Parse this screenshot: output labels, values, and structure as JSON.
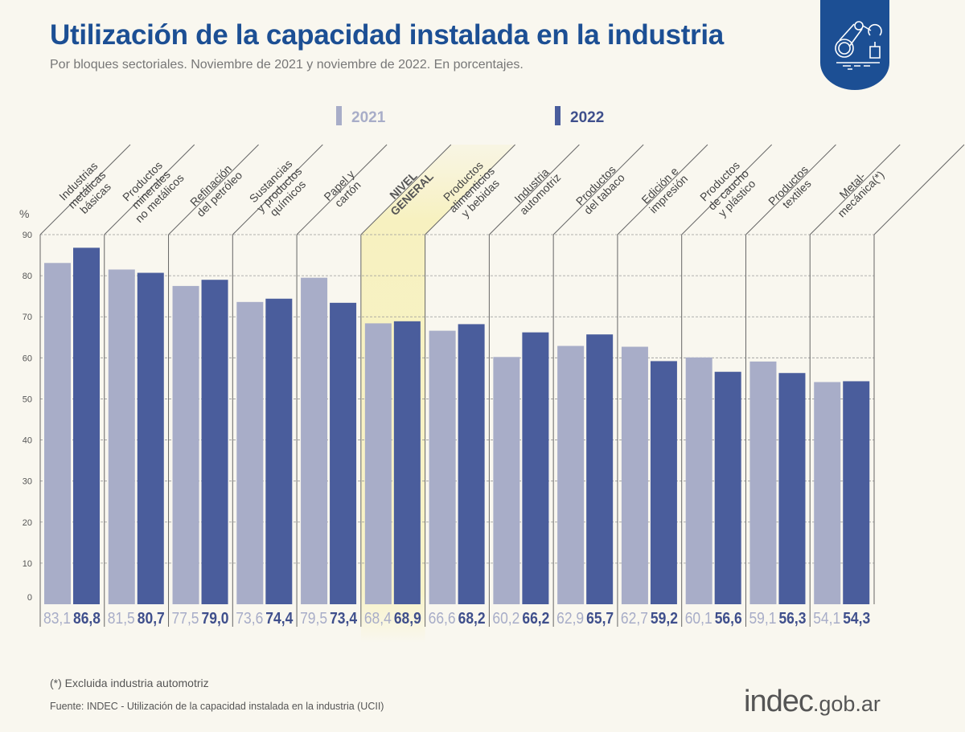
{
  "title": "Utilización de la capacidad instalada en la industria",
  "subtitle": "Por bloques sectoriales. Noviembre de 2021 y noviembre de 2022. En porcentajes.",
  "footnote": "(*) Excluida industria automotriz",
  "source": "Fuente: INDEC - Utilización de la capacidad instalada en la industria (UCII)",
  "logo": {
    "main": "indec",
    "suffix": ".gob.ar"
  },
  "badge_icon": "robotic-arm-icon",
  "chart_data": {
    "type": "bar",
    "ylabel": "%",
    "ylim": [
      0,
      90
    ],
    "yticks": [
      0,
      10,
      20,
      30,
      40,
      50,
      60,
      70,
      80,
      90
    ],
    "grid": true,
    "legend_position": "top",
    "highlight_category": "NIVEL GENERAL",
    "categories": [
      [
        "Industrias",
        "metálicas",
        "básicas"
      ],
      [
        "Productos",
        "minerales",
        "no metálicos"
      ],
      [
        "Refinación",
        "del petróleo"
      ],
      [
        "Sustancias",
        "y productos",
        "químicos"
      ],
      [
        "Papel y",
        "cartón"
      ],
      [
        "NIVEL",
        "GENERAL"
      ],
      [
        "Productos",
        "alimenticios",
        "y bebidas"
      ],
      [
        "Industria",
        "automotriz"
      ],
      [
        "Productos",
        "del tabaco"
      ],
      [
        "Edición e",
        "impresión"
      ],
      [
        "Productos",
        "de caucho",
        "y plástico"
      ],
      [
        "Productos",
        "textiles"
      ],
      [
        "Metal-",
        "mecánica(*)"
      ]
    ],
    "series": [
      {
        "name": "2021",
        "color": "#a8adc8",
        "values": [
          83.1,
          81.5,
          77.5,
          73.6,
          79.5,
          68.4,
          66.6,
          60.2,
          62.9,
          62.7,
          60.1,
          59.1,
          54.1
        ],
        "labels": [
          "83,1",
          "81,5",
          "77,5",
          "73,6",
          "79,5",
          "68,4",
          "66,6",
          "60,2",
          "62,9",
          "62,7",
          "60,1",
          "59,1",
          "54,1"
        ]
      },
      {
        "name": "2022",
        "color": "#4a5d9c",
        "values": [
          86.8,
          80.7,
          79.0,
          74.4,
          73.4,
          68.9,
          68.2,
          66.2,
          65.7,
          59.2,
          56.6,
          56.3,
          54.3
        ],
        "labels": [
          "86,8",
          "80,7",
          "79,0",
          "74,4",
          "73,4",
          "68,9",
          "68,2",
          "66,2",
          "65,7",
          "59,2",
          "56,6",
          "56,3",
          "54,3"
        ]
      }
    ]
  }
}
